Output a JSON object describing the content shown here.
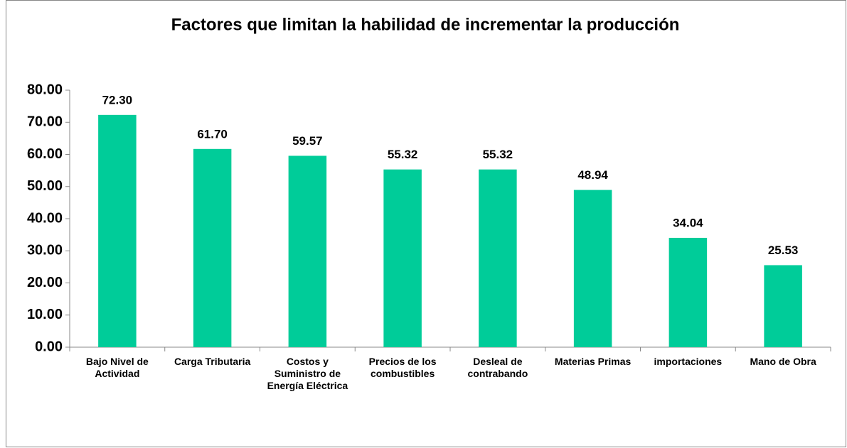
{
  "chart_data": {
    "type": "bar",
    "title": "Factores que limitan la habilidad de incrementar la producción",
    "categories": [
      "Bajo Nivel de Actividad",
      "Carga Tributaria",
      "Costos y Suministro de Energía Eléctrica",
      "Precios de los combustibles",
      "Desleal de contrabando",
      "Materias Primas",
      "importaciones",
      "Mano de Obra"
    ],
    "values": [
      72.3,
      61.7,
      59.57,
      55.32,
      55.32,
      48.94,
      34.04,
      25.53
    ],
    "value_labels": [
      "72.30",
      "61.70",
      "59.57",
      "55.32",
      "55.32",
      "48.94",
      "34.04",
      "25.53"
    ],
    "color": "#00cc99",
    "ylim": [
      0,
      80
    ],
    "yticks": [
      {
        "value": 0,
        "label": "0.00"
      },
      {
        "value": 10,
        "label": "10.00"
      },
      {
        "value": 20,
        "label": "20.00"
      },
      {
        "value": 30,
        "label": "30.00"
      },
      {
        "value": 40,
        "label": "40.00"
      },
      {
        "value": 50,
        "label": "50.00"
      },
      {
        "value": 60,
        "label": "60.00"
      },
      {
        "value": 70,
        "label": "70.00"
      },
      {
        "value": 80,
        "label": "80.00"
      }
    ],
    "grid": false
  }
}
